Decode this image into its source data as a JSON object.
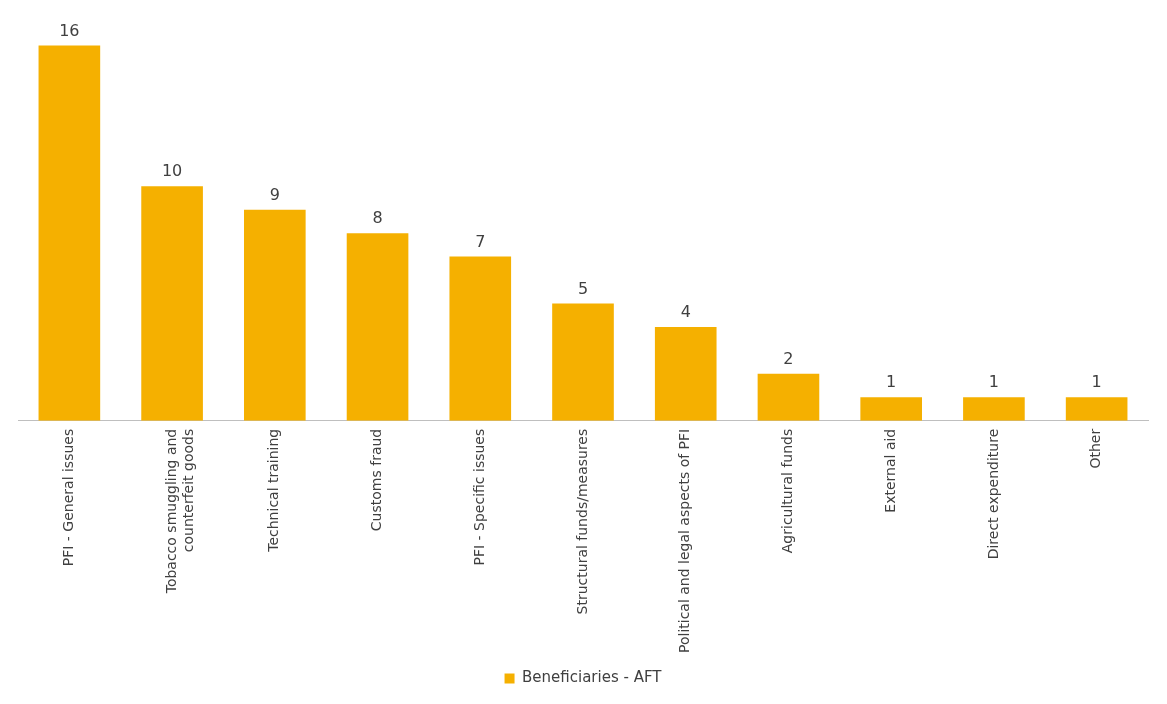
{
  "chart_data": {
    "type": "bar",
    "categories": [
      "PFI - General issues",
      "Tobacco smuggling and counterfeit goods",
      "Technical training",
      "Customs fraud",
      "PFI - Specific issues",
      "Structural funds/measures",
      "Political and legal aspects of PFI",
      "Agricultural funds",
      "External aid",
      "Direct expenditure",
      "Other"
    ],
    "series": [
      {
        "name": "Beneficiaries - AFT",
        "color": "#f5b000",
        "values": [
          16,
          10,
          9,
          8,
          7,
          5,
          4,
          2,
          1,
          1,
          1
        ]
      }
    ],
    "data_labels": true,
    "legend": "bottom",
    "grid": false
  }
}
